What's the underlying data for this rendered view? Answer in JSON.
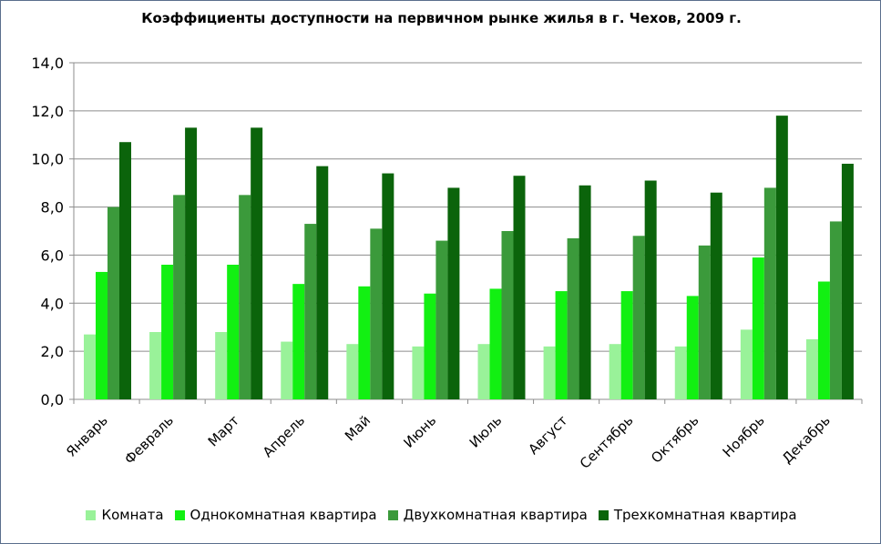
{
  "chart_data": {
    "type": "bar",
    "title": "Коэффициенты доступности на первичном рынке жилья в г. Чехов, 2009 г.",
    "categories": [
      "Январь",
      "Февраль",
      "Март",
      "Апрель",
      "Май",
      "Июнь",
      "Июль",
      "Август",
      "Сентябрь",
      "Октябрь",
      "Ноябрь",
      "Декабрь"
    ],
    "ylim": [
      0,
      14
    ],
    "yticks": [
      "0,0",
      "2,0",
      "4,0",
      "6,0",
      "8,0",
      "10,0",
      "12,0",
      "14,0"
    ],
    "grid": true,
    "legend_position": "bottom",
    "series": [
      {
        "name": "Комната",
        "color": "#99f299",
        "values": [
          2.7,
          2.8,
          2.8,
          2.4,
          2.3,
          2.2,
          2.3,
          2.2,
          2.3,
          2.2,
          2.9,
          2.5
        ]
      },
      {
        "name": "Однокомнатная квартира",
        "color": "#12f012",
        "values": [
          5.3,
          5.6,
          5.6,
          4.8,
          4.7,
          4.4,
          4.6,
          4.5,
          4.5,
          4.3,
          5.9,
          4.9
        ]
      },
      {
        "name": "Двухкомнатная квартира",
        "color": "#3b9a3b",
        "values": [
          8.0,
          8.5,
          8.5,
          7.3,
          7.1,
          6.6,
          7.0,
          6.7,
          6.8,
          6.4,
          8.8,
          7.4
        ]
      },
      {
        "name": "Трехкомнатная квартира",
        "color": "#0b640b",
        "values": [
          10.7,
          11.3,
          11.3,
          9.7,
          9.4,
          8.8,
          9.3,
          8.9,
          9.1,
          8.6,
          11.8,
          9.8
        ]
      }
    ]
  }
}
